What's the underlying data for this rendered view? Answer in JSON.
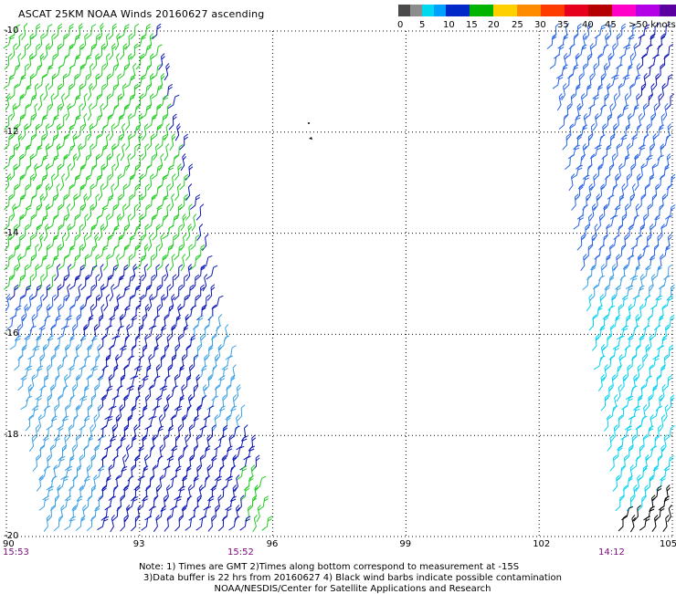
{
  "title": "ASCAT 25KM NOAA Winds 20160627 ascending",
  "legend": {
    "labels": [
      "0",
      "5",
      "10",
      "15",
      "20",
      "25",
      "30",
      "35",
      "40",
      "45",
      ">50 knots"
    ],
    "colors": [
      "#4a4a4a",
      "#8c8c8c",
      "#00d8f0",
      "#00a0ff",
      "#0028c8",
      "#00b400",
      "#ffd000",
      "#ff8c00",
      "#ff3c00",
      "#e6001e",
      "#b40000",
      "#ff00c8",
      "#b400e6",
      "#5a00a0"
    ]
  },
  "map": {
    "lat_labels": [
      "-10",
      "-12",
      "-14",
      "-16",
      "-18",
      "-20"
    ],
    "lon_labels": [
      "90",
      "93",
      "96",
      "99",
      "102",
      "105"
    ],
    "lat_range": [
      -20,
      -10
    ],
    "lon_range": [
      90,
      105
    ],
    "grid": "dotted",
    "times": [
      "15:53",
      "15:52",
      "14:12"
    ],
    "barb_colors": {
      "green": "#22cc22",
      "blue": "#0a14b4",
      "medium_blue": "#2864e6",
      "light_blue": "#3ca0e6",
      "cyan": "#00d2f0",
      "black": "#000000"
    }
  },
  "notes": {
    "line1": "Note: 1) Times are GMT 2)Times along bottom correspond to measurement at -15S",
    "line2": "3)Data buffer is 22 hrs from 20160627 4) Black wind barbs indicate possible contamination",
    "line3": "NOAA/NESDIS/Center for Satellite Applications and Research"
  }
}
